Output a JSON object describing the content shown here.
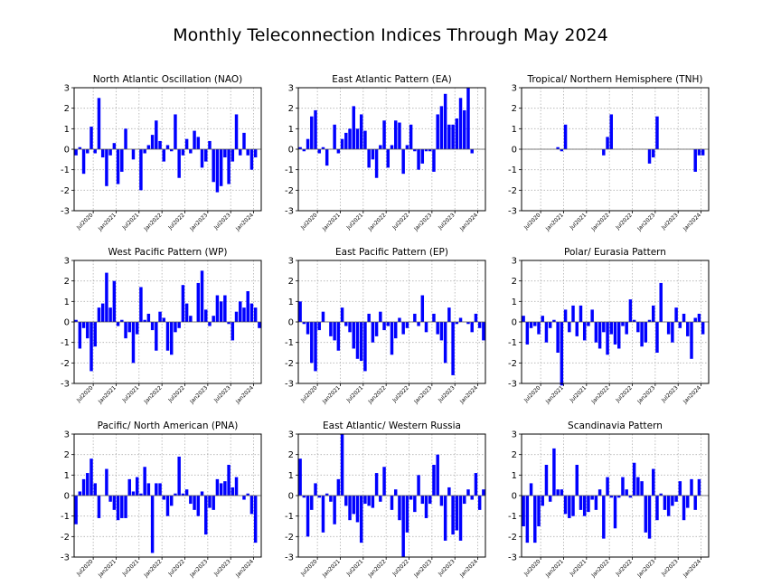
{
  "title": "Monthly Teleconnection Indices Through May 2024",
  "bar_color": "#0000ff",
  "chart_data": [
    {
      "type": "bar",
      "title": "North Atlantic Oscillation (NAO)",
      "ylim": [
        -3,
        3
      ],
      "yticks": [
        "-3",
        "-2",
        "-1",
        "0",
        "1",
        "2",
        "3"
      ],
      "xtick_labels": [
        "Jul2020",
        "Jan2021",
        "Jul2021",
        "Jan2022",
        "Jul2022",
        "Jan2023",
        "Jul2023",
        "Jan2024"
      ],
      "grid": true,
      "values": [
        -0.3,
        0.1,
        -1.2,
        -0.2,
        1.1,
        -0.2,
        2.5,
        -0.4,
        -1.8,
        -0.3,
        0.3,
        -1.7,
        -1.1,
        1.0,
        0.0,
        -0.5,
        0.0,
        -2.0,
        -0.2,
        0.2,
        0.7,
        1.4,
        0.4,
        -0.6,
        0.2,
        -0.1,
        1.7,
        -1.4,
        -0.3,
        0.5,
        -0.2,
        0.9,
        0.6,
        -0.9,
        -0.6,
        0.4,
        -1.6,
        -2.1,
        -1.8,
        -0.4,
        -1.7,
        -0.6,
        1.7,
        -0.3,
        0.8,
        -0.3,
        -1.0,
        -0.4
      ]
    },
    {
      "type": "bar",
      "title": "East Atlantic Pattern (EA)",
      "ylim": [
        -3,
        3
      ],
      "yticks": [
        "-3",
        "-2",
        "-1",
        "0",
        "1",
        "2",
        "3"
      ],
      "xtick_labels": [
        "Jul2020",
        "Jan2021",
        "Jul2021",
        "Jan2022",
        "Jul2022",
        "Jan2023",
        "Jul2023",
        "Jan2024"
      ],
      "grid": true,
      "values": [
        0.1,
        -0.1,
        0.5,
        1.6,
        1.9,
        -0.2,
        0.1,
        -0.8,
        0.0,
        1.2,
        -0.2,
        0.5,
        0.8,
        1.0,
        2.1,
        1.0,
        1.7,
        0.9,
        -0.9,
        -0.5,
        -1.4,
        0.2,
        1.4,
        -0.9,
        0.2,
        1.4,
        1.3,
        -1.2,
        0.2,
        1.2,
        -0.1,
        -1.0,
        -0.7,
        -0.1,
        -0.1,
        -1.1,
        1.7,
        2.1,
        2.7,
        1.2,
        1.2,
        1.5,
        2.5,
        1.9,
        3.0,
        -0.2
      ]
    },
    {
      "type": "bar",
      "title": "Tropical/ Northern Hemisphere (TNH)",
      "ylim": [
        -3,
        3
      ],
      "yticks": [
        "-3",
        "-2",
        "-1",
        "0",
        "1",
        "2",
        "3"
      ],
      "xtick_labels": [
        "Jul2020",
        "Jan2021",
        "Jul2021",
        "Jan2022",
        "Jul2022",
        "Jan2023",
        "Jul2023",
        "Jan2024"
      ],
      "grid": true,
      "values": [
        0,
        0,
        0,
        0,
        0,
        0,
        0,
        0,
        0,
        0.1,
        -0.1,
        1.2,
        0,
        0,
        0,
        0,
        0,
        0,
        0,
        0,
        0,
        -0.3,
        0.6,
        1.7,
        0,
        0,
        0,
        0,
        0,
        0,
        0,
        0,
        0,
        -0.7,
        -0.4,
        1.6,
        0,
        0,
        0,
        0,
        0,
        0,
        0,
        0,
        0,
        -1.1,
        -0.3,
        -0.3
      ]
    },
    {
      "type": "bar",
      "title": "West Pacific Pattern (WP)",
      "ylim": [
        -3,
        3
      ],
      "yticks": [
        "-3",
        "-2",
        "-1",
        "0",
        "1",
        "2",
        "3"
      ],
      "xtick_labels": [
        "Jul2020",
        "Jan2021",
        "Jul2021",
        "Jan2022",
        "Jul2022",
        "Jan2023",
        "Jul2023",
        "Jan2024"
      ],
      "grid": true,
      "values": [
        0.1,
        -1.3,
        -0.3,
        -0.8,
        -2.4,
        -1.2,
        0.7,
        0.9,
        2.4,
        0.7,
        2.0,
        -0.2,
        0.1,
        -0.8,
        -0.5,
        -2.0,
        -0.6,
        1.7,
        0.1,
        0.4,
        -0.4,
        -1.4,
        0.5,
        0.2,
        -1.4,
        -1.6,
        -0.5,
        -0.3,
        1.8,
        0.9,
        0.3,
        0.0,
        1.9,
        2.5,
        0.6,
        -0.2,
        0.3,
        1.3,
        1.0,
        1.3,
        -0.1,
        -0.9,
        0.5,
        1.0,
        0.7,
        1.5,
        0.9,
        0.7,
        -0.3
      ]
    },
    {
      "type": "bar",
      "title": "East Pacific Pattern (EP)",
      "ylim": [
        -3,
        3
      ],
      "yticks": [
        "-3",
        "-2",
        "-1",
        "0",
        "1",
        "2",
        "3"
      ],
      "xtick_labels": [
        "Jul2020",
        "Jan2021",
        "Jul2021",
        "Jan2022",
        "Jul2022",
        "Jan2023",
        "Jul2023",
        "Jan2024"
      ],
      "grid": true,
      "values": [
        1.0,
        -0.1,
        -0.6,
        -2.0,
        -2.4,
        -0.4,
        0.5,
        0.0,
        -0.7,
        -0.9,
        -1.4,
        0.7,
        -0.2,
        -0.5,
        -1.3,
        -1.8,
        -1.9,
        -2.4,
        0.4,
        -1.0,
        -0.7,
        0.5,
        -0.4,
        -0.2,
        -1.6,
        -0.8,
        0.2,
        -0.6,
        -0.3,
        0.0,
        0.4,
        -0.2,
        1.3,
        -0.5,
        0.0,
        0.4,
        -0.6,
        -0.9,
        -2.0,
        0.7,
        -2.6,
        -0.1,
        0.2,
        0.0,
        -0.1,
        -0.5,
        0.4,
        -0.3,
        -0.9
      ]
    },
    {
      "type": "bar",
      "title": "Polar/ Eurasia Pattern",
      "ylim": [
        -3,
        3
      ],
      "yticks": [
        "-3",
        "-2",
        "-1",
        "0",
        "1",
        "2",
        "3"
      ],
      "xtick_labels": [
        "Jul2020",
        "Jan2021",
        "Jul2021",
        "Jan2022",
        "Jul2022",
        "Jan2023",
        "Jul2023",
        "Jan2024"
      ],
      "grid": true,
      "values": [
        0.3,
        -1.1,
        -0.3,
        -0.2,
        -0.6,
        0.3,
        -1.0,
        -0.3,
        0.1,
        -1.5,
        -3.1,
        0.6,
        -0.5,
        0.8,
        -0.7,
        0.8,
        -0.9,
        -0.2,
        0.6,
        -1.0,
        -1.3,
        -0.5,
        -1.6,
        -0.6,
        -1.1,
        -1.3,
        -0.2,
        -0.6,
        1.1,
        0.1,
        -0.5,
        -1.2,
        -1.0,
        0.1,
        0.8,
        -1.5,
        1.9,
        0.0,
        -0.6,
        -1.0,
        0.7,
        -0.3,
        0.4,
        -0.7,
        -1.8,
        0.2,
        0.4,
        -0.6
      ]
    },
    {
      "type": "bar",
      "title": "Pacific/ North American (PNA)",
      "ylim": [
        -3,
        3
      ],
      "yticks": [
        "-3",
        "-2",
        "-1",
        "0",
        "1",
        "2",
        "3"
      ],
      "xtick_labels": [
        "Jul2020",
        "Jan2021",
        "Jul2021",
        "Jan2022",
        "Jul2022",
        "Jan2023",
        "Jul2023",
        "Jan2024"
      ],
      "grid": true,
      "values": [
        -1.4,
        0.2,
        0.8,
        1.1,
        1.8,
        0.6,
        -1.1,
        0.0,
        1.3,
        -0.3,
        -0.7,
        -1.2,
        -1.1,
        -1.1,
        0.8,
        0.2,
        0.9,
        0.1,
        1.4,
        0.6,
        -2.8,
        0.6,
        0.6,
        -0.2,
        -1.0,
        -0.5,
        0.1,
        1.9,
        0.1,
        0.3,
        -0.4,
        -0.7,
        -1.0,
        0.2,
        -1.9,
        -0.6,
        -0.7,
        0.8,
        0.6,
        0.7,
        1.5,
        0.4,
        0.9,
        0.0,
        -0.2,
        0.1,
        -0.9,
        -2.3
      ]
    },
    {
      "type": "bar",
      "title": "East Atlantic/ Western Russia",
      "ylim": [
        -3,
        3
      ],
      "yticks": [
        "-3",
        "-2",
        "-1",
        "0",
        "1",
        "2",
        "3"
      ],
      "xtick_labels": [
        "Jul2020",
        "Jan2021",
        "Jul2021",
        "Jan2022",
        "Jul2022",
        "Jan2023",
        "Jul2023",
        "Jan2024"
      ],
      "grid": true,
      "values": [
        1.8,
        -0.1,
        -2.0,
        -0.7,
        0.6,
        -0.1,
        -1.8,
        0.1,
        -0.3,
        -1.4,
        0.8,
        3.0,
        -0.5,
        -1.2,
        -0.9,
        -1.3,
        -2.3,
        -0.4,
        -0.5,
        -0.6,
        1.1,
        -0.3,
        1.4,
        0.0,
        -0.7,
        0.3,
        -1.2,
        -3.0,
        -1.8,
        -0.2,
        -0.8,
        1.0,
        -0.4,
        -1.1,
        -0.4,
        1.5,
        2.0,
        -0.5,
        -2.2,
        0.4,
        -1.9,
        -1.7,
        -2.2,
        -0.4,
        0.3,
        -0.2,
        1.1,
        -0.7,
        0.3
      ]
    },
    {
      "type": "bar",
      "title": "Scandinavia Pattern",
      "ylim": [
        -3,
        3
      ],
      "yticks": [
        "-3",
        "-2",
        "-1",
        "0",
        "1",
        "2",
        "3"
      ],
      "xtick_labels": [
        "Jul2020",
        "Jan2021",
        "Jul2021",
        "Jan2022",
        "Jul2022",
        "Jan2023",
        "Jul2023",
        "Jan2024"
      ],
      "grid": true,
      "values": [
        -1.5,
        -2.3,
        0.6,
        -2.3,
        -1.5,
        -0.5,
        1.5,
        -0.3,
        2.3,
        0.3,
        0.3,
        -0.9,
        -1.1,
        -1.0,
        1.5,
        -0.7,
        -1.0,
        -0.8,
        -0.2,
        -0.7,
        0.3,
        -2.1,
        0.9,
        -0.1,
        -1.6,
        -0.1,
        0.9,
        0.3,
        -0.1,
        1.6,
        0.9,
        0.7,
        -1.8,
        -2.1,
        1.3,
        -1.2,
        0.1,
        -0.7,
        -1.0,
        -0.5,
        -0.3,
        0.7,
        -1.2,
        -0.6,
        0.8,
        -0.7,
        0.8
      ]
    }
  ]
}
